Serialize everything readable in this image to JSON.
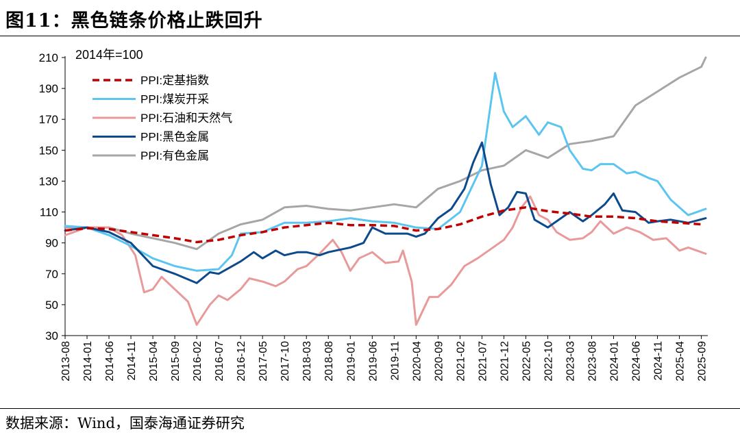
{
  "title": "图11：黑色链条价格止跌回升",
  "source": "数据来源：Wind，国泰海通证券研究",
  "chart_data": {
    "type": "line",
    "base_note": "2014年=100",
    "ylim": [
      30,
      210
    ],
    "yticks": [
      30,
      50,
      70,
      90,
      110,
      130,
      150,
      170,
      190,
      210
    ],
    "xticks": [
      "2013-08",
      "2014-01",
      "2014-06",
      "2014-11",
      "2015-04",
      "2015-09",
      "2016-02",
      "2016-07",
      "2016-12",
      "2017-05",
      "2017-10",
      "2018-03",
      "2018-08",
      "2019-01",
      "2019-06",
      "2019-11",
      "2020-04",
      "2020-09",
      "2021-02",
      "2021-07",
      "2021-12",
      "2022-05",
      "2022-10",
      "2023-03",
      "2023-08",
      "2024-01",
      "2024-06",
      "2024-11",
      "2025-04",
      "2025-09"
    ],
    "x_start": "2013-08",
    "x_end": "2025-10",
    "xlabel": "",
    "ylabel": "",
    "legend": "top-left",
    "series": [
      {
        "name": "PPI:定基指数",
        "color": "#c00000",
        "dash": true,
        "points": [
          [
            "2013-08",
            98
          ],
          [
            "2014-01",
            99.5
          ],
          [
            "2014-06",
            99
          ],
          [
            "2014-11",
            97
          ],
          [
            "2015-04",
            95
          ],
          [
            "2015-09",
            93
          ],
          [
            "2016-02",
            90.5
          ],
          [
            "2016-07",
            92
          ],
          [
            "2016-12",
            95
          ],
          [
            "2017-05",
            97
          ],
          [
            "2017-10",
            100
          ],
          [
            "2018-03",
            101.5
          ],
          [
            "2018-08",
            103
          ],
          [
            "2019-01",
            101.5
          ],
          [
            "2019-06",
            101.5
          ],
          [
            "2019-11",
            101
          ],
          [
            "2020-04",
            98
          ],
          [
            "2020-09",
            99
          ],
          [
            "2021-02",
            102
          ],
          [
            "2021-07",
            107
          ],
          [
            "2021-12",
            111
          ],
          [
            "2022-05",
            113
          ],
          [
            "2022-10",
            110.5
          ],
          [
            "2023-03",
            109
          ],
          [
            "2023-08",
            107
          ],
          [
            "2024-01",
            107
          ],
          [
            "2024-06",
            106
          ],
          [
            "2024-11",
            104
          ],
          [
            "2025-04",
            103
          ],
          [
            "2025-09",
            102
          ]
        ]
      },
      {
        "name": "PPI:煤炭开采",
        "color": "#5bc5f0",
        "dash": false,
        "points": [
          [
            "2013-08",
            101
          ],
          [
            "2014-01",
            100
          ],
          [
            "2014-06",
            95
          ],
          [
            "2014-11",
            88
          ],
          [
            "2015-04",
            80
          ],
          [
            "2015-09",
            75
          ],
          [
            "2016-02",
            72
          ],
          [
            "2016-07",
            73
          ],
          [
            "2016-10",
            82
          ],
          [
            "2016-12",
            96
          ],
          [
            "2017-05",
            97
          ],
          [
            "2017-10",
            103
          ],
          [
            "2018-03",
            103
          ],
          [
            "2018-08",
            104
          ],
          [
            "2019-01",
            106
          ],
          [
            "2019-06",
            104
          ],
          [
            "2019-11",
            103
          ],
          [
            "2020-04",
            100
          ],
          [
            "2020-09",
            99
          ],
          [
            "2021-02",
            110
          ],
          [
            "2021-07",
            140
          ],
          [
            "2021-10",
            200
          ],
          [
            "2021-12",
            175
          ],
          [
            "2022-02",
            165
          ],
          [
            "2022-05",
            172
          ],
          [
            "2022-08",
            160
          ],
          [
            "2022-10",
            168
          ],
          [
            "2023-01",
            165
          ],
          [
            "2023-03",
            150
          ],
          [
            "2023-06",
            138
          ],
          [
            "2023-08",
            137
          ],
          [
            "2023-10",
            141
          ],
          [
            "2024-01",
            141
          ],
          [
            "2024-04",
            135
          ],
          [
            "2024-06",
            136
          ],
          [
            "2024-09",
            132
          ],
          [
            "2024-11",
            130
          ],
          [
            "2025-02",
            118
          ],
          [
            "2025-06",
            108
          ],
          [
            "2025-10",
            112
          ]
        ]
      },
      {
        "name": "PPI:石油和天然气",
        "color": "#e8999a",
        "dash": false,
        "points": [
          [
            "2013-08",
            95
          ],
          [
            "2014-01",
            100
          ],
          [
            "2014-06",
            100
          ],
          [
            "2014-09",
            95
          ],
          [
            "2014-12",
            82
          ],
          [
            "2015-02",
            58
          ],
          [
            "2015-04",
            60
          ],
          [
            "2015-06",
            68
          ],
          [
            "2015-09",
            60
          ],
          [
            "2015-12",
            52
          ],
          [
            "2016-02",
            37
          ],
          [
            "2016-05",
            50
          ],
          [
            "2016-07",
            56
          ],
          [
            "2016-09",
            53
          ],
          [
            "2016-12",
            60
          ],
          [
            "2017-02",
            67
          ],
          [
            "2017-05",
            65
          ],
          [
            "2017-08",
            62
          ],
          [
            "2017-10",
            65
          ],
          [
            "2018-01",
            73
          ],
          [
            "2018-03",
            75
          ],
          [
            "2018-06",
            83
          ],
          [
            "2018-09",
            92
          ],
          [
            "2018-11",
            84
          ],
          [
            "2019-01",
            72
          ],
          [
            "2019-03",
            80
          ],
          [
            "2019-06",
            84
          ],
          [
            "2019-09",
            77
          ],
          [
            "2019-12",
            78
          ],
          [
            "2020-01",
            85
          ],
          [
            "2020-03",
            65
          ],
          [
            "2020-04",
            37
          ],
          [
            "2020-05",
            43
          ],
          [
            "2020-07",
            55
          ],
          [
            "2020-09",
            55
          ],
          [
            "2020-12",
            63
          ],
          [
            "2021-03",
            75
          ],
          [
            "2021-06",
            80
          ],
          [
            "2021-09",
            86
          ],
          [
            "2021-12",
            92
          ],
          [
            "2022-02",
            100
          ],
          [
            "2022-04",
            113
          ],
          [
            "2022-06",
            120
          ],
          [
            "2022-08",
            108
          ],
          [
            "2022-10",
            105
          ],
          [
            "2022-12",
            97
          ],
          [
            "2023-03",
            92
          ],
          [
            "2023-06",
            93
          ],
          [
            "2023-08",
            97
          ],
          [
            "2023-10",
            104
          ],
          [
            "2024-01",
            96
          ],
          [
            "2024-04",
            100
          ],
          [
            "2024-07",
            97
          ],
          [
            "2024-10",
            92
          ],
          [
            "2025-01",
            93
          ],
          [
            "2025-04",
            85
          ],
          [
            "2025-06",
            87
          ],
          [
            "2025-10",
            83
          ]
        ]
      },
      {
        "name": "PPI:黑色金属",
        "color": "#0c4a8c",
        "dash": false,
        "points": [
          [
            "2013-08",
            98
          ],
          [
            "2014-01",
            100
          ],
          [
            "2014-06",
            97
          ],
          [
            "2014-11",
            90
          ],
          [
            "2015-04",
            75
          ],
          [
            "2015-09",
            70
          ],
          [
            "2016-02",
            64
          ],
          [
            "2016-05",
            71
          ],
          [
            "2016-07",
            70
          ],
          [
            "2016-12",
            78
          ],
          [
            "2017-03",
            84
          ],
          [
            "2017-05",
            80
          ],
          [
            "2017-08",
            85
          ],
          [
            "2017-10",
            82
          ],
          [
            "2018-01",
            84
          ],
          [
            "2018-03",
            84
          ],
          [
            "2018-06",
            82
          ],
          [
            "2018-08",
            84
          ],
          [
            "2019-01",
            87
          ],
          [
            "2019-04",
            90
          ],
          [
            "2019-06",
            100
          ],
          [
            "2019-09",
            96
          ],
          [
            "2019-11",
            96
          ],
          [
            "2020-02",
            96
          ],
          [
            "2020-04",
            94
          ],
          [
            "2020-06",
            96
          ],
          [
            "2020-09",
            106
          ],
          [
            "2020-12",
            112
          ],
          [
            "2021-03",
            125
          ],
          [
            "2021-05",
            142
          ],
          [
            "2021-07",
            155
          ],
          [
            "2021-09",
            128
          ],
          [
            "2021-11",
            108
          ],
          [
            "2022-01",
            113
          ],
          [
            "2022-03",
            123
          ],
          [
            "2022-05",
            122
          ],
          [
            "2022-07",
            105
          ],
          [
            "2022-10",
            100
          ],
          [
            "2023-01",
            106
          ],
          [
            "2023-03",
            110
          ],
          [
            "2023-06",
            104
          ],
          [
            "2023-08",
            108
          ],
          [
            "2023-11",
            115
          ],
          [
            "2024-01",
            122
          ],
          [
            "2024-03",
            111
          ],
          [
            "2024-06",
            110
          ],
          [
            "2024-09",
            103
          ],
          [
            "2024-11",
            104
          ],
          [
            "2025-02",
            105
          ],
          [
            "2025-06",
            103
          ],
          [
            "2025-10",
            106
          ]
        ]
      },
      {
        "name": "PPI:有色金属",
        "color": "#a6a6a6",
        "dash": false,
        "points": [
          [
            "2013-08",
            100
          ],
          [
            "2014-01",
            100
          ],
          [
            "2014-06",
            100
          ],
          [
            "2014-11",
            96
          ],
          [
            "2015-04",
            93
          ],
          [
            "2015-09",
            90
          ],
          [
            "2016-02",
            86
          ],
          [
            "2016-07",
            96
          ],
          [
            "2016-12",
            102
          ],
          [
            "2017-05",
            105
          ],
          [
            "2017-10",
            113
          ],
          [
            "2018-03",
            114
          ],
          [
            "2018-08",
            112
          ],
          [
            "2019-01",
            111
          ],
          [
            "2019-06",
            113
          ],
          [
            "2019-11",
            115
          ],
          [
            "2020-04",
            113
          ],
          [
            "2020-09",
            125
          ],
          [
            "2021-02",
            130
          ],
          [
            "2021-07",
            137
          ],
          [
            "2021-12",
            140
          ],
          [
            "2022-05",
            150
          ],
          [
            "2022-10",
            145
          ],
          [
            "2023-03",
            154
          ],
          [
            "2023-08",
            156
          ],
          [
            "2024-01",
            159
          ],
          [
            "2024-06",
            179
          ],
          [
            "2024-11",
            188
          ],
          [
            "2025-04",
            197
          ],
          [
            "2025-09",
            204
          ],
          [
            "2025-10",
            210
          ]
        ]
      }
    ]
  }
}
